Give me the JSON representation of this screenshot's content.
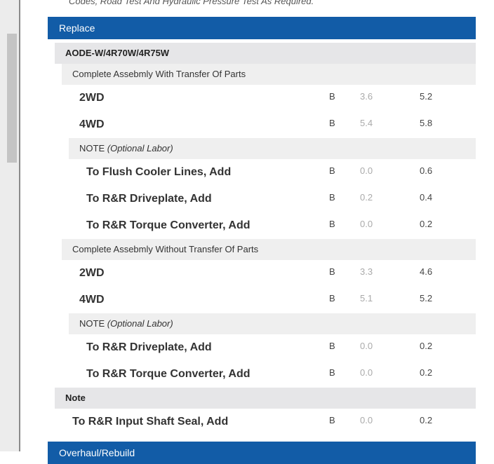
{
  "intro_text": "Codes, Road Test And Hydraulic Pressure Test As Required.",
  "section": "Replace",
  "group": "AODE-W/4R70W/4R75W",
  "subgroups": [
    {
      "title": "Complete Assebmly With Transfer Of Parts",
      "rows": [
        {
          "label": "2WD",
          "code": "B",
          "tech": "3.6",
          "warranty": "5.2"
        },
        {
          "label": "4WD",
          "code": "B",
          "tech": "5.4",
          "warranty": "5.8"
        }
      ],
      "note_label": "NOTE",
      "note_sub": "(Optional Labor)",
      "note_rows": [
        {
          "label": "To Flush Cooler Lines, Add",
          "code": "B",
          "tech": "0.0",
          "warranty": "0.6"
        },
        {
          "label": "To R&R Driveplate, Add",
          "code": "B",
          "tech": "0.2",
          "warranty": "0.4"
        },
        {
          "label": "To R&R Torque Converter, Add",
          "code": "B",
          "tech": "0.0",
          "warranty": "0.2"
        }
      ]
    },
    {
      "title": "Complete Assebmly Without Transfer Of Parts",
      "rows": [
        {
          "label": "2WD",
          "code": "B",
          "tech": "3.3",
          "warranty": "4.6"
        },
        {
          "label": "4WD",
          "code": "B",
          "tech": "5.1",
          "warranty": "5.2"
        }
      ],
      "note_label": "NOTE",
      "note_sub": "(Optional Labor)",
      "note_rows": [
        {
          "label": "To R&R Driveplate, Add",
          "code": "B",
          "tech": "0.0",
          "warranty": "0.2"
        },
        {
          "label": "To R&R Torque Converter, Add",
          "code": "B",
          "tech": "0.0",
          "warranty": "0.2"
        }
      ]
    }
  ],
  "note_group": "Note",
  "note_group_row": {
    "label": "To R&R Input Shaft Seal, Add",
    "code": "B",
    "tech": "0.0",
    "warranty": "0.2"
  },
  "next_section": "Overhaul/Rebuild"
}
